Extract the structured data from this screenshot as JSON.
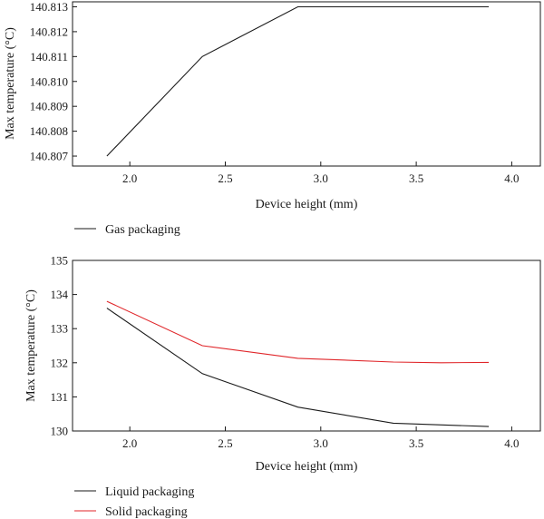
{
  "chart_data": [
    {
      "type": "line",
      "xlabel": "Device height (mm)",
      "ylabel": "Max temperature (°C)",
      "xlim": [
        1.7,
        4.15
      ],
      "ylim": [
        140.8066,
        140.8132
      ],
      "xticks": [
        "2.0",
        "2.5",
        "3.0",
        "3.5",
        "4.0"
      ],
      "xtick_values": [
        2.0,
        2.5,
        3.0,
        3.5,
        4.0
      ],
      "yticks": [
        "140.807",
        "140.808",
        "140.809",
        "140.810",
        "140.811",
        "140.812",
        "140.813"
      ],
      "ytick_values": [
        140.807,
        140.808,
        140.809,
        140.81,
        140.811,
        140.812,
        140.813
      ],
      "legend_position": "bottom-left, below plot",
      "grid": false,
      "series": [
        {
          "name": "Gas packaging",
          "color": "#1a1a1a",
          "x": [
            1.88,
            2.38,
            2.88,
            3.88
          ],
          "y": [
            140.807,
            140.811,
            140.813,
            140.813
          ]
        }
      ]
    },
    {
      "type": "line",
      "xlabel": "Device height (mm)",
      "ylabel": "Max temperature (°C)",
      "xlim": [
        1.7,
        4.15
      ],
      "ylim": [
        130,
        135
      ],
      "xticks": [
        "2.0",
        "2.5",
        "3.0",
        "3.5",
        "4.0"
      ],
      "xtick_values": [
        2.0,
        2.5,
        3.0,
        3.5,
        4.0
      ],
      "yticks": [
        "130",
        "131",
        "132",
        "133",
        "134",
        "135"
      ],
      "ytick_values": [
        130,
        131,
        132,
        133,
        134,
        135
      ],
      "legend_position": "bottom-left, below plot",
      "grid": false,
      "series": [
        {
          "name": "Liquid packaging",
          "color": "#1a1a1a",
          "x": [
            1.88,
            2.38,
            2.88,
            3.38,
            3.88
          ],
          "y": [
            133.6,
            131.68,
            130.7,
            130.23,
            130.13
          ]
        },
        {
          "name": "Solid packaging",
          "color": "#e0262a",
          "x": [
            1.88,
            2.38,
            2.88,
            3.38,
            3.63,
            3.88
          ],
          "y": [
            133.8,
            132.5,
            132.13,
            132.02,
            132.0,
            132.01
          ]
        }
      ]
    }
  ]
}
